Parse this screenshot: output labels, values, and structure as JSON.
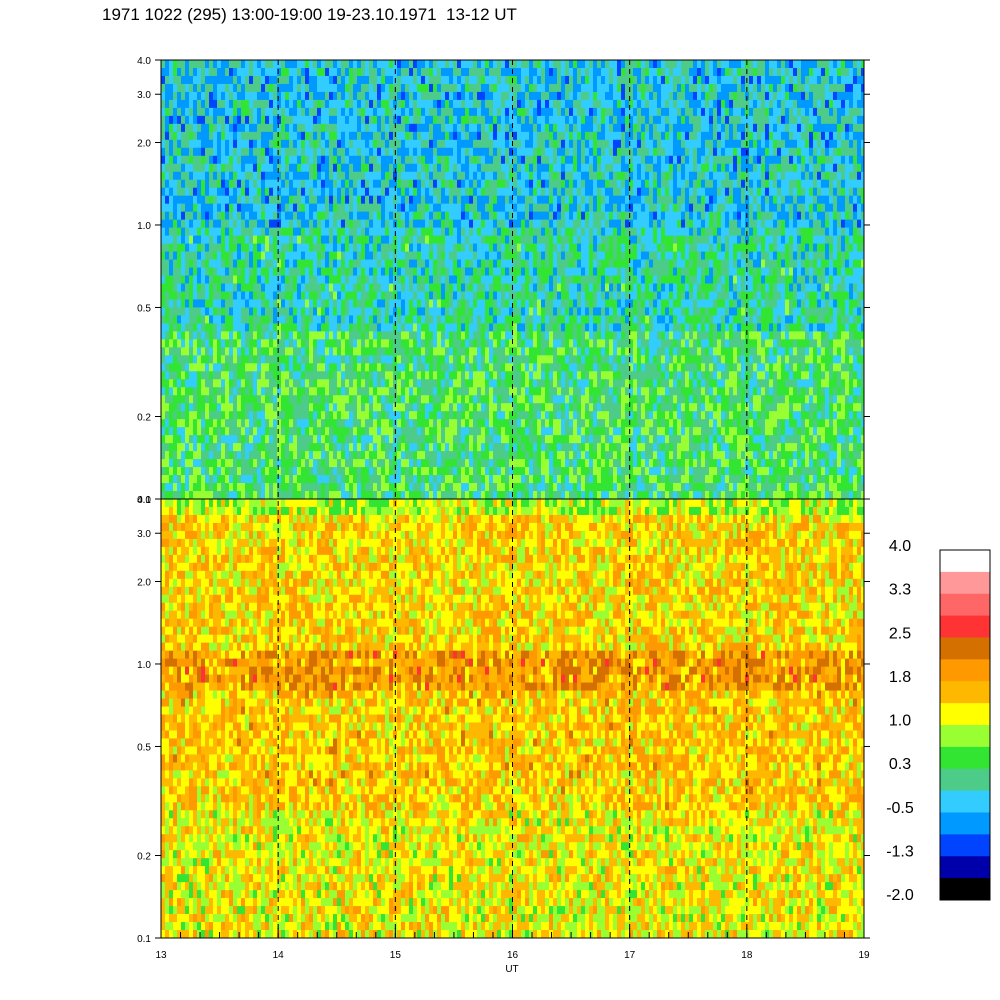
{
  "title": "1971 1022 (295) 13:00-19:00 19-23.10.1971  13-12 UT",
  "chart_data": {
    "type": "heatmap",
    "title": "1971 1022 (295) 13:00-19:00 19-23.10.1971  13-12 UT",
    "xlabel": "UT",
    "x_ticks": [
      "13",
      "14",
      "15",
      "16",
      "17",
      "18",
      "19"
    ],
    "xlim": [
      13,
      19
    ],
    "y_scale": "log",
    "ylim": [
      0.1,
      4.0
    ],
    "y_ticks": [
      "0.1",
      "0.2",
      "0.5",
      "1.0",
      "2.0",
      "3.0",
      "4.0"
    ],
    "dashed_vertical_lines_at": [
      14,
      15,
      16,
      17,
      18
    ],
    "panels": [
      {
        "name": "upper",
        "dominant_levels": [
          {
            "y_range": [
              0.1,
              0.4
            ],
            "level": 0.3
          },
          {
            "y_range": [
              0.4,
              1.0
            ],
            "level": 0.0
          },
          {
            "y_range": [
              1.0,
              4.0
            ],
            "level": -0.3
          }
        ]
      },
      {
        "name": "lower",
        "dominant_levels": [
          {
            "y_range": [
              0.1,
              0.3
            ],
            "level": 1.2
          },
          {
            "y_range": [
              0.3,
              0.8
            ],
            "level": 1.5
          },
          {
            "y_range": [
              0.8,
              1.1
            ],
            "level": 1.9
          },
          {
            "y_range": [
              1.1,
              3.5
            ],
            "level": 1.4
          },
          {
            "y_range": [
              3.5,
              4.0
            ],
            "level": 0.9
          }
        ]
      }
    ],
    "colorbar": {
      "labels": [
        "4.0",
        "3.3",
        "2.5",
        "1.8",
        "1.0",
        "0.3",
        "-0.5",
        "-1.3",
        "-2.0"
      ],
      "colors": [
        "#ffffff",
        "#ff9999",
        "#ff6666",
        "#ff3333",
        "#d47000",
        "#ff9900",
        "#ffb800",
        "#ffff00",
        "#99ff33",
        "#33e533",
        "#4ccc88",
        "#33ccff",
        "#0099ff",
        "#0044ff",
        "#0000aa",
        "#000000"
      ]
    }
  }
}
